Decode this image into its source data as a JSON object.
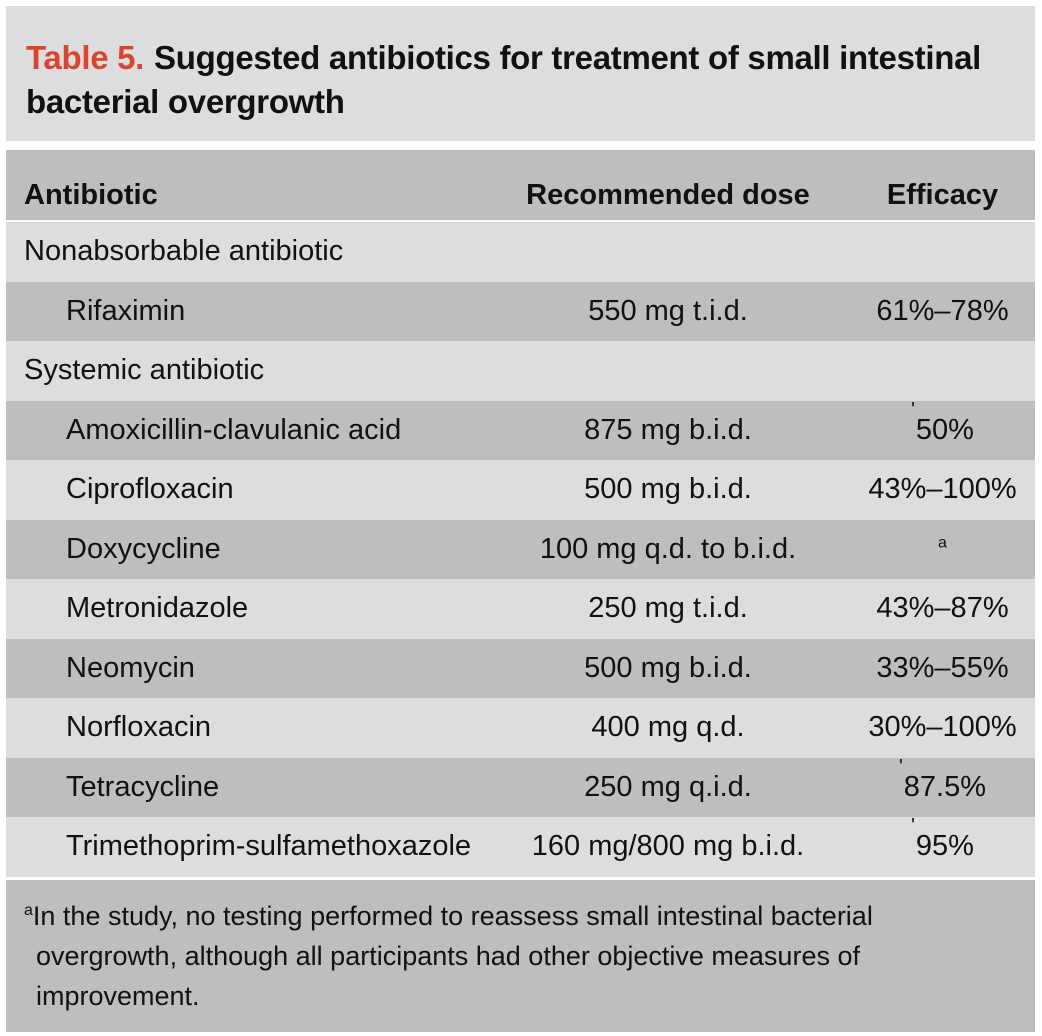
{
  "title": {
    "number": "Table 5.",
    "text": "Suggested antibiotics for treatment of small intestinal bacterial overgrowth"
  },
  "columns": {
    "antibiotic": "Antibiotic",
    "dose": "Recommended dose",
    "efficacy": "Efficacy"
  },
  "rows": [
    {
      "type": "group",
      "antibiotic": "Nonabsorbable antibiotic",
      "dose": "",
      "efficacy": ""
    },
    {
      "type": "item",
      "antibiotic": "Rifaximin",
      "dose": "550 mg t.i.d.",
      "efficacy": "61%–78%",
      "mark": ""
    },
    {
      "type": "group",
      "antibiotic": "Systemic antibiotic",
      "dose": "",
      "efficacy": ""
    },
    {
      "type": "item",
      "antibiotic": "Amoxicillin-clavulanic acid",
      "dose": "875 mg b.i.d.",
      "efficacy": "50%",
      "mark": "'"
    },
    {
      "type": "item",
      "antibiotic": "Ciprofloxacin",
      "dose": "500 mg b.i.d.",
      "efficacy": "43%–100%",
      "mark": ""
    },
    {
      "type": "item",
      "antibiotic": "Doxycycline",
      "dose": "100 mg q.d. to b.i.d.",
      "efficacy": "",
      "mark": "a"
    },
    {
      "type": "item",
      "antibiotic": "Metronidazole",
      "dose": "250 mg t.i.d.",
      "efficacy": "43%–87%",
      "mark": ""
    },
    {
      "type": "item",
      "antibiotic": "Neomycin",
      "dose": "500 mg b.i.d.",
      "efficacy": "33%–55%",
      "mark": ""
    },
    {
      "type": "item",
      "antibiotic": "Norfloxacin",
      "dose": "400 mg q.d.",
      "efficacy": "30%–100%",
      "mark": ""
    },
    {
      "type": "item",
      "antibiotic": "Tetracycline",
      "dose": "250 mg q.i.d.",
      "efficacy": "87.5%",
      "mark": "'"
    },
    {
      "type": "item",
      "antibiotic": "Trimethoprim-sulfamethoxazole",
      "dose": "160 mg/800 mg b.i.d.",
      "efficacy": "95%",
      "mark": "'"
    }
  ],
  "footnote": {
    "marker": "a",
    "line1": "In the study, no testing performed to reassess small intestinal bacterial",
    "line2": "overgrowth, although all participants had other objective measures of",
    "line3": "improvement."
  },
  "colors": {
    "title_number": "#d9452f",
    "light_band": "#dcdddf",
    "dark_band": "#bdbebf"
  }
}
